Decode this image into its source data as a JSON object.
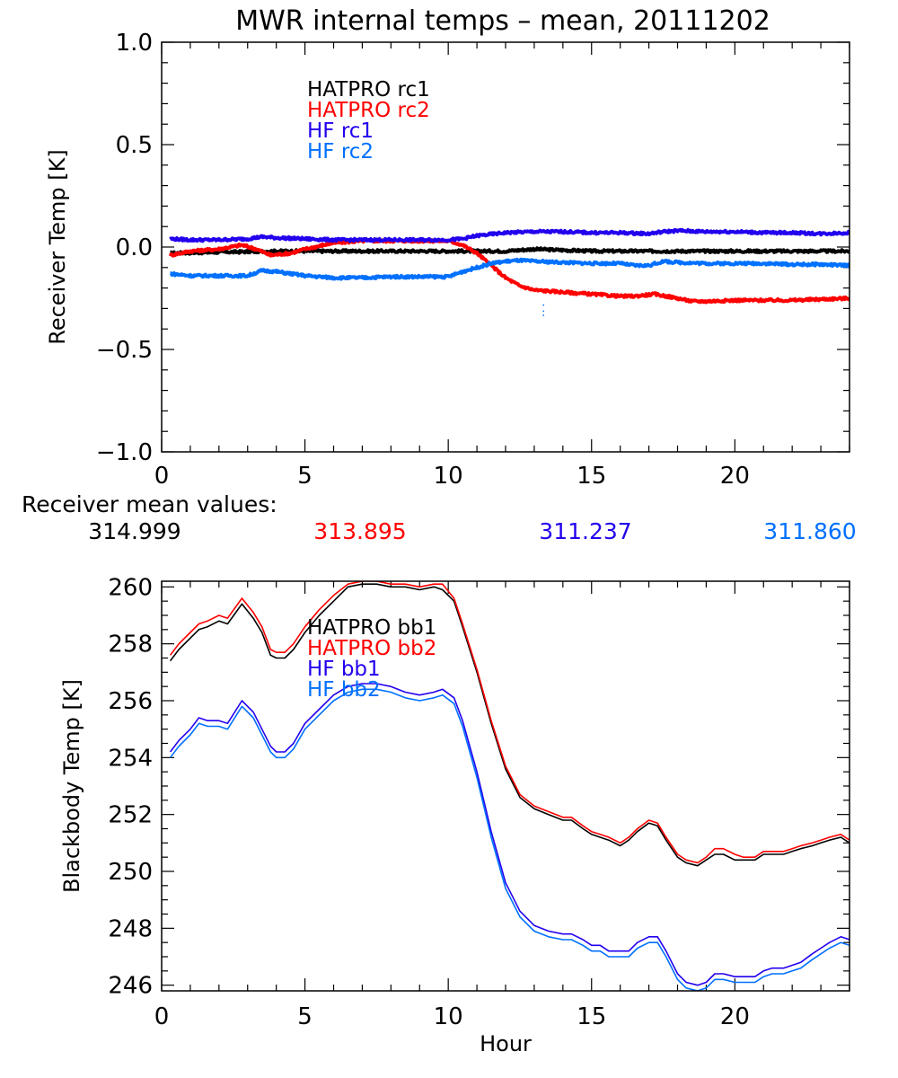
{
  "title": "MWR internal temps – mean, 20111202",
  "chart_data": [
    {
      "type": "line",
      "id": "receiver",
      "title": "MWR internal temps – mean, 20111202",
      "xlabel": "",
      "ylabel": "Receiver Temp [K]",
      "xlim": [
        0,
        24
      ],
      "ylim": [
        -1.0,
        1.0
      ],
      "xticks": [
        0,
        5,
        10,
        15,
        20
      ],
      "xtick_labels": [
        "0",
        "5",
        "10",
        "15",
        "20"
      ],
      "yticks": [
        -1.0,
        -0.5,
        0.0,
        0.5,
        1.0
      ],
      "ytick_labels": [
        "−1.0",
        "−0.5",
        "0.0",
        "0.5",
        "1.0"
      ],
      "x_minor_step": 1,
      "y_minor_step": 0.1,
      "grid": false,
      "legend_position": "top-center",
      "series": [
        {
          "name": "HATPRO rc1",
          "color": "#000000",
          "x": [
            0.3,
            2,
            4,
            6,
            8,
            10,
            11,
            12,
            13,
            14,
            15,
            16,
            17,
            18,
            19,
            20,
            21,
            22,
            23,
            24
          ],
          "y": [
            -0.03,
            -0.025,
            -0.02,
            -0.02,
            -0.02,
            -0.02,
            -0.02,
            -0.02,
            -0.01,
            -0.015,
            -0.02,
            -0.02,
            -0.02,
            -0.02,
            -0.02,
            -0.02,
            -0.02,
            -0.02,
            -0.02,
            -0.02
          ]
        },
        {
          "name": "HATPRO rc2",
          "color": "#ff0000",
          "x": [
            0.3,
            1,
            2,
            2.8,
            3.3,
            3.8,
            4.5,
            5,
            6,
            7,
            8,
            9,
            10,
            10.5,
            11,
            11.5,
            12,
            12.5,
            13,
            14,
            15,
            16,
            16.5,
            17.2,
            18,
            18.5,
            19,
            20,
            21,
            22,
            23,
            24
          ],
          "y": [
            -0.04,
            -0.02,
            -0.01,
            0.01,
            -0.01,
            -0.04,
            -0.03,
            -0.01,
            0.02,
            0.03,
            0.03,
            0.03,
            0.03,
            0.01,
            -0.03,
            -0.09,
            -0.15,
            -0.19,
            -0.21,
            -0.22,
            -0.23,
            -0.24,
            -0.24,
            -0.23,
            -0.25,
            -0.265,
            -0.265,
            -0.26,
            -0.26,
            -0.26,
            -0.255,
            -0.25
          ]
        },
        {
          "name": "HF rc1",
          "color": "#2200ee",
          "x": [
            0.3,
            1,
            2,
            3,
            3.5,
            4,
            5,
            6,
            7,
            8,
            9,
            10,
            10.5,
            11,
            12,
            13,
            14,
            15,
            16,
            17,
            17.5,
            18,
            19,
            20,
            21,
            22,
            23,
            24
          ],
          "y": [
            0.04,
            0.035,
            0.035,
            0.04,
            0.05,
            0.045,
            0.04,
            0.035,
            0.035,
            0.035,
            0.035,
            0.035,
            0.04,
            0.055,
            0.07,
            0.075,
            0.075,
            0.07,
            0.07,
            0.065,
            0.075,
            0.08,
            0.075,
            0.075,
            0.07,
            0.07,
            0.065,
            0.07
          ]
        },
        {
          "name": "HF rc2",
          "color": "#0070ff",
          "x": [
            0.3,
            1,
            2,
            3,
            3.5,
            4,
            5,
            6,
            7,
            8,
            9,
            10,
            10.5,
            11,
            11.5,
            12,
            12.5,
            13,
            14,
            15,
            16,
            16.5,
            17,
            17.5,
            18,
            19,
            20,
            21,
            22,
            23,
            24
          ],
          "y": [
            -0.13,
            -0.14,
            -0.14,
            -0.14,
            -0.115,
            -0.12,
            -0.14,
            -0.15,
            -0.15,
            -0.145,
            -0.145,
            -0.145,
            -0.12,
            -0.1,
            -0.08,
            -0.07,
            -0.065,
            -0.07,
            -0.075,
            -0.08,
            -0.08,
            -0.09,
            -0.09,
            -0.07,
            -0.075,
            -0.08,
            -0.08,
            -0.08,
            -0.085,
            -0.085,
            -0.09
          ]
        }
      ],
      "stray_points": {
        "color": "#0070ff",
        "x": [
          13.3,
          13.3,
          13.3
        ],
        "y": [
          -0.28,
          -0.31,
          -0.33
        ]
      }
    },
    {
      "type": "line",
      "id": "blackbody",
      "title": "",
      "xlabel": "Hour",
      "ylabel": "Blackbody Temp [K]",
      "xlim": [
        0,
        24
      ],
      "ylim": [
        245.8,
        260.2
      ],
      "xticks": [
        0,
        5,
        10,
        15,
        20
      ],
      "xtick_labels": [
        "0",
        "5",
        "10",
        "15",
        "20"
      ],
      "yticks": [
        246,
        248,
        250,
        252,
        254,
        256,
        258,
        260
      ],
      "ytick_labels": [
        "246",
        "248",
        "250",
        "252",
        "254",
        "256",
        "258",
        "260"
      ],
      "x_minor_step": 1,
      "y_minor_step": 0.5,
      "grid": false,
      "legend_position": "top-center",
      "series": [
        {
          "name": "HATPRO bb1",
          "color": "#000000",
          "x": [
            0.3,
            0.6,
            1.0,
            1.3,
            1.6,
            2.0,
            2.3,
            2.8,
            3.2,
            3.5,
            3.8,
            4.0,
            4.3,
            4.6,
            5.0,
            5.5,
            6.0,
            6.5,
            7.0,
            7.5,
            8.0,
            8.5,
            9.0,
            9.5,
            9.8,
            10.2,
            10.5,
            11.0,
            11.5,
            12.0,
            12.5,
            13.0,
            13.5,
            14.0,
            14.3,
            14.7,
            15.0,
            15.3,
            15.6,
            16.0,
            16.3,
            16.6,
            17.0,
            17.3,
            17.6,
            18.0,
            18.3,
            18.7,
            19.0,
            19.3,
            19.6,
            20.0,
            20.3,
            20.7,
            21.0,
            21.3,
            21.7,
            22.0,
            22.3,
            22.7,
            23.0,
            23.3,
            23.7,
            24.0
          ],
          "y": [
            257.4,
            257.8,
            258.2,
            258.5,
            258.6,
            258.8,
            258.7,
            259.4,
            258.9,
            258.4,
            257.6,
            257.5,
            257.5,
            257.8,
            258.4,
            259.0,
            259.5,
            260.0,
            260.1,
            260.1,
            260.0,
            260.0,
            259.9,
            260.0,
            259.9,
            259.5,
            258.6,
            257.0,
            255.2,
            253.6,
            252.6,
            252.2,
            252.0,
            251.8,
            251.8,
            251.5,
            251.3,
            251.2,
            251.1,
            250.9,
            251.1,
            251.4,
            251.7,
            251.6,
            251.1,
            250.5,
            250.3,
            250.2,
            250.4,
            250.6,
            250.6,
            250.4,
            250.4,
            250.4,
            250.6,
            250.6,
            250.6,
            250.7,
            250.8,
            250.9,
            251.0,
            251.1,
            251.2,
            251.0
          ]
        },
        {
          "name": "HATPRO bb2",
          "color": "#ff0000",
          "x": [
            0.3,
            0.6,
            1.0,
            1.3,
            1.6,
            2.0,
            2.3,
            2.8,
            3.2,
            3.5,
            3.8,
            4.0,
            4.3,
            4.6,
            5.0,
            5.5,
            6.0,
            6.5,
            7.0,
            7.5,
            8.0,
            8.5,
            9.0,
            9.5,
            9.8,
            10.2,
            10.5,
            11.0,
            11.5,
            12.0,
            12.5,
            13.0,
            13.5,
            14.0,
            14.3,
            14.7,
            15.0,
            15.3,
            15.6,
            16.0,
            16.3,
            16.6,
            17.0,
            17.3,
            17.6,
            18.0,
            18.3,
            18.7,
            19.0,
            19.3,
            19.6,
            20.0,
            20.3,
            20.7,
            21.0,
            21.3,
            21.7,
            22.0,
            22.3,
            22.7,
            23.0,
            23.3,
            23.7,
            24.0
          ],
          "y": [
            257.6,
            258.0,
            258.4,
            258.7,
            258.8,
            259.0,
            258.9,
            259.6,
            259.1,
            258.6,
            257.8,
            257.7,
            257.7,
            258.0,
            258.6,
            259.2,
            259.7,
            260.1,
            260.2,
            260.2,
            260.1,
            260.1,
            260.0,
            260.1,
            260.1,
            259.6,
            258.7,
            257.1,
            255.3,
            253.7,
            252.7,
            252.3,
            252.1,
            251.9,
            251.9,
            251.6,
            251.4,
            251.3,
            251.2,
            251.0,
            251.2,
            251.5,
            251.8,
            251.7,
            251.2,
            250.6,
            250.4,
            250.3,
            250.5,
            250.8,
            250.8,
            250.6,
            250.5,
            250.5,
            250.7,
            250.7,
            250.7,
            250.8,
            250.9,
            251.0,
            251.1,
            251.2,
            251.3,
            251.1
          ]
        },
        {
          "name": "HF bb1",
          "color": "#2200ee",
          "x": [
            0.3,
            0.6,
            1.0,
            1.3,
            1.6,
            2.0,
            2.3,
            2.8,
            3.2,
            3.5,
            3.8,
            4.0,
            4.3,
            4.6,
            5.0,
            5.5,
            6.0,
            6.5,
            7.0,
            7.5,
            8.0,
            8.5,
            9.0,
            9.5,
            9.8,
            10.2,
            10.5,
            11.0,
            11.5,
            12.0,
            12.5,
            13.0,
            13.5,
            14.0,
            14.3,
            14.7,
            15.0,
            15.3,
            15.6,
            16.0,
            16.3,
            16.6,
            17.0,
            17.3,
            17.6,
            18.0,
            18.3,
            18.7,
            19.0,
            19.3,
            19.6,
            20.0,
            20.3,
            20.7,
            21.0,
            21.3,
            21.7,
            22.0,
            22.3,
            22.7,
            23.0,
            23.3,
            23.7,
            24.0
          ],
          "y": [
            254.2,
            254.6,
            255.0,
            255.4,
            255.3,
            255.3,
            255.2,
            256.0,
            255.6,
            255.0,
            254.4,
            254.2,
            254.2,
            254.5,
            255.2,
            255.7,
            256.2,
            256.5,
            256.6,
            256.6,
            256.5,
            256.3,
            256.2,
            256.3,
            256.4,
            256.1,
            255.3,
            253.5,
            251.4,
            249.6,
            248.6,
            248.1,
            247.9,
            247.8,
            247.8,
            247.6,
            247.4,
            247.4,
            247.2,
            247.2,
            247.2,
            247.5,
            247.7,
            247.7,
            247.2,
            246.4,
            246.1,
            246.0,
            246.1,
            246.4,
            246.4,
            246.3,
            246.3,
            246.3,
            246.5,
            246.6,
            246.6,
            246.7,
            246.8,
            247.1,
            247.3,
            247.5,
            247.7,
            247.6
          ]
        },
        {
          "name": "HF bb2",
          "color": "#0070ff",
          "x": [
            0.3,
            0.6,
            1.0,
            1.3,
            1.6,
            2.0,
            2.3,
            2.8,
            3.2,
            3.5,
            3.8,
            4.0,
            4.3,
            4.6,
            5.0,
            5.5,
            6.0,
            6.5,
            7.0,
            7.5,
            8.0,
            8.5,
            9.0,
            9.5,
            9.8,
            10.2,
            10.5,
            11.0,
            11.5,
            12.0,
            12.5,
            13.0,
            13.5,
            14.0,
            14.3,
            14.7,
            15.0,
            15.3,
            15.6,
            16.0,
            16.3,
            16.6,
            17.0,
            17.3,
            17.6,
            18.0,
            18.3,
            18.7,
            19.0,
            19.3,
            19.6,
            20.0,
            20.3,
            20.7,
            21.0,
            21.3,
            21.7,
            22.0,
            22.3,
            22.7,
            23.0,
            23.3,
            23.7,
            24.0
          ],
          "y": [
            254.0,
            254.4,
            254.8,
            255.2,
            255.1,
            255.1,
            255.0,
            255.8,
            255.4,
            254.8,
            254.2,
            254.0,
            254.0,
            254.3,
            255.0,
            255.5,
            256.0,
            256.3,
            256.4,
            256.4,
            256.3,
            256.1,
            256.0,
            256.1,
            256.2,
            255.9,
            255.1,
            253.3,
            251.2,
            249.4,
            248.4,
            247.9,
            247.7,
            247.6,
            247.6,
            247.4,
            247.2,
            247.2,
            247.0,
            247.0,
            247.0,
            247.3,
            247.5,
            247.5,
            247.0,
            246.2,
            245.9,
            245.8,
            245.9,
            246.2,
            246.2,
            246.1,
            246.1,
            246.1,
            246.3,
            246.4,
            246.4,
            246.5,
            246.6,
            246.9,
            247.1,
            247.3,
            247.5,
            247.4
          ]
        }
      ]
    }
  ],
  "mean_values": {
    "label": "Receiver mean values:",
    "items": [
      {
        "value": "314.999",
        "color": "#000000"
      },
      {
        "value": "313.895",
        "color": "#ff0000"
      },
      {
        "value": "311.237",
        "color": "#2200ee"
      },
      {
        "value": "311.860",
        "color": "#0070ff"
      }
    ]
  }
}
